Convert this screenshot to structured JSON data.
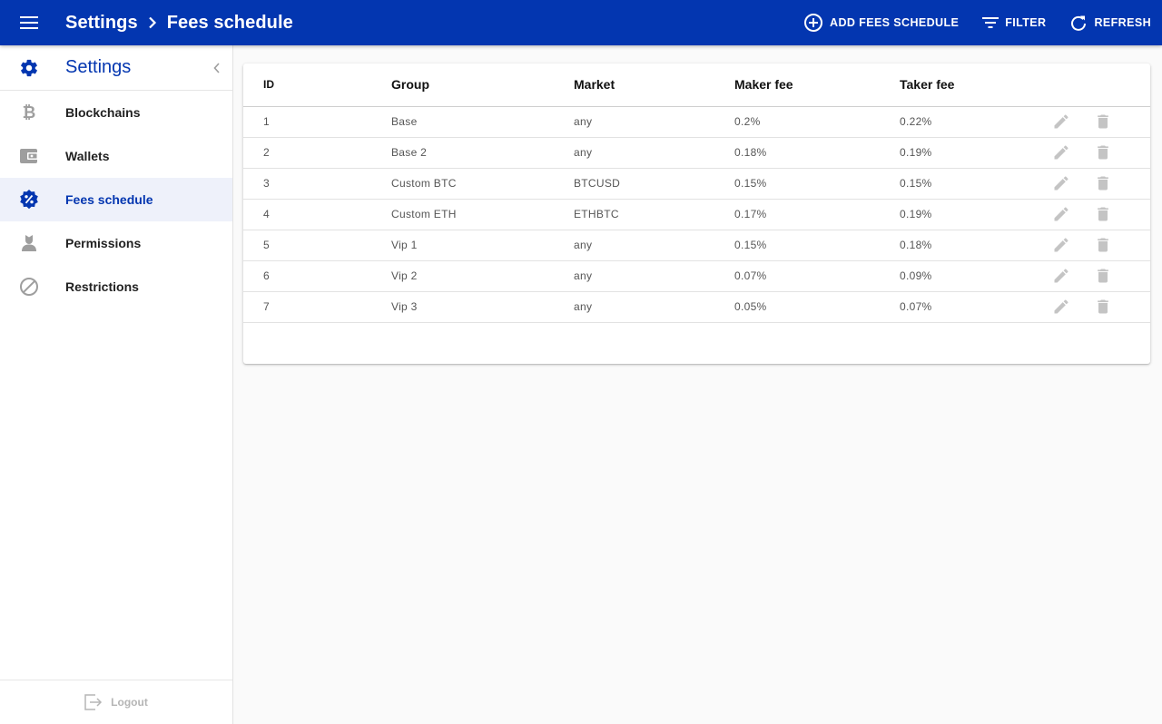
{
  "appbar": {
    "menu_icon": "menu-icon",
    "title_root": "Settings",
    "title_current": "Fees schedule",
    "actions": {
      "add": "ADD FEES SCHEDULE",
      "filter": "FILTER",
      "refresh": "REFRESH"
    }
  },
  "sidebar": {
    "title": "Settings",
    "items": [
      {
        "label": "Blockchains",
        "icon": "bitcoin-icon"
      },
      {
        "label": "Wallets",
        "icon": "wallet-icon"
      },
      {
        "label": "Fees schedule",
        "icon": "percent-badge-icon",
        "active": true
      },
      {
        "label": "Permissions",
        "icon": "user-permission-icon"
      },
      {
        "label": "Restrictions",
        "icon": "block-icon"
      }
    ],
    "logout": "Logout"
  },
  "table": {
    "headers": {
      "id": "ID",
      "group": "Group",
      "market": "Market",
      "maker": "Maker fee",
      "taker": "Taker fee"
    },
    "rows": [
      {
        "id": "1",
        "group": "Base",
        "market": "any",
        "maker": "0.2%",
        "taker": "0.22%"
      },
      {
        "id": "2",
        "group": "Base 2",
        "market": "any",
        "maker": "0.18%",
        "taker": "0.19%"
      },
      {
        "id": "3",
        "group": "Custom BTC",
        "market": "BTCUSD",
        "maker": "0.15%",
        "taker": "0.15%"
      },
      {
        "id": "4",
        "group": "Custom ETH",
        "market": "ETHBTC",
        "maker": "0.17%",
        "taker": "0.19%"
      },
      {
        "id": "5",
        "group": "Vip 1",
        "market": "any",
        "maker": "0.15%",
        "taker": "0.18%"
      },
      {
        "id": "6",
        "group": "Vip 2",
        "market": "any",
        "maker": "0.07%",
        "taker": "0.09%"
      },
      {
        "id": "7",
        "group": "Vip 3",
        "market": "any",
        "maker": "0.05%",
        "taker": "0.07%"
      }
    ]
  },
  "colors": {
    "primary": "#0336b0",
    "active_bg": "#eef1fa",
    "icon_gray": "#9e9e9e",
    "action_icon": "#c4c4c4",
    "background": "#fafafa"
  }
}
